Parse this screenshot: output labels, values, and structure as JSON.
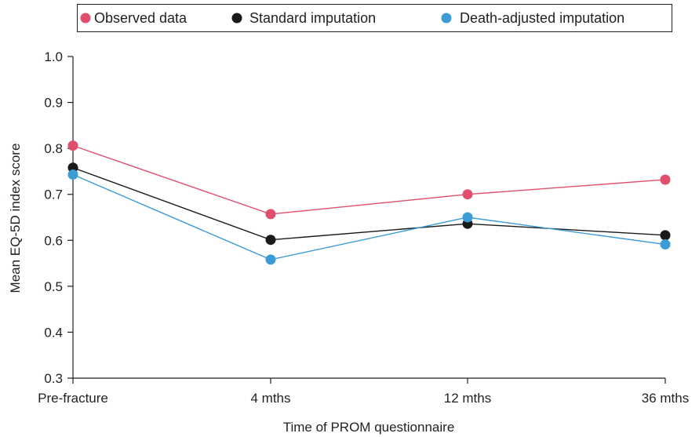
{
  "chart_data": {
    "type": "line",
    "title": "",
    "xlabel": "Time of PROM questionnaire",
    "ylabel": "Mean EQ-5D index score",
    "categories": [
      "Pre-fracture",
      "4 mths",
      "12 mths",
      "36 mths"
    ],
    "ylim": [
      0.3,
      1.0
    ],
    "yticks": [
      "0.3",
      "0.4",
      "0.5",
      "0.6",
      "0.7",
      "0.8",
      "0.9",
      "1.0"
    ],
    "grid": false,
    "legend_position": "top",
    "series": [
      {
        "name": "Observed data",
        "color": "#e0506e",
        "values": [
          0.806,
          0.657,
          0.7,
          0.732
        ]
      },
      {
        "name": "Standard imputation",
        "color": "#1a1a1a",
        "values": [
          0.758,
          0.601,
          0.636,
          0.611
        ]
      },
      {
        "name": "Death-adjusted imputation",
        "color": "#3b9bd5",
        "values": [
          0.743,
          0.558,
          0.65,
          0.591
        ]
      }
    ]
  }
}
